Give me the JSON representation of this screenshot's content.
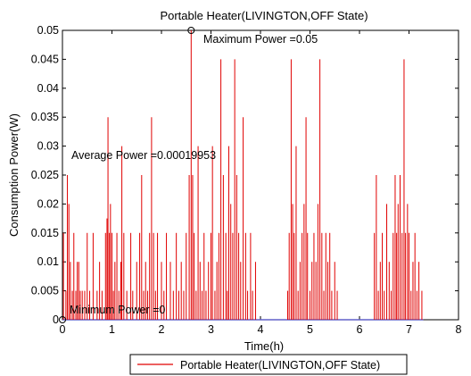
{
  "chart_data": {
    "type": "line",
    "title": "Portable Heater(LIVINGTON,OFF State)",
    "xlabel": "Time(h)",
    "ylabel": "Consumption Power(W)",
    "xlim": [
      0,
      8
    ],
    "ylim": [
      0,
      0.05
    ],
    "x_ticks": [
      "0",
      "1",
      "2",
      "3",
      "4",
      "5",
      "6",
      "7",
      "8"
    ],
    "y_ticks": [
      "0",
      "0.005",
      "0.01",
      "0.015",
      "0.02",
      "0.025",
      "0.03",
      "0.035",
      "0.04",
      "0.045",
      "0.05"
    ],
    "grid": false,
    "legend_position": "bottom-center",
    "series": [
      {
        "name": "Portable Heater(LIVINGTON,OFF State)",
        "color": "#e00000",
        "spikes": [
          [
            0.02,
            0.015
          ],
          [
            0.07,
            0.005
          ],
          [
            0.1,
            0.025
          ],
          [
            0.13,
            0.02
          ],
          [
            0.16,
            0.01
          ],
          [
            0.2,
            0.005
          ],
          [
            0.23,
            0.015
          ],
          [
            0.27,
            0.005
          ],
          [
            0.3,
            0.01
          ],
          [
            0.33,
            0.01
          ],
          [
            0.36,
            0.005
          ],
          [
            0.4,
            0.005
          ],
          [
            0.45,
            0.005
          ],
          [
            0.5,
            0.015
          ],
          [
            0.55,
            0.005
          ],
          [
            0.62,
            0.015
          ],
          [
            0.7,
            0.005
          ],
          [
            0.75,
            0.01
          ],
          [
            0.8,
            0.005
          ],
          [
            0.87,
            0.015
          ],
          [
            0.9,
            0.0175
          ],
          [
            0.92,
            0.035
          ],
          [
            0.95,
            0.015
          ],
          [
            0.97,
            0.02
          ],
          [
            1.0,
            0.015
          ],
          [
            1.03,
            0.005
          ],
          [
            1.06,
            0.01
          ],
          [
            1.1,
            0.015
          ],
          [
            1.14,
            0.005
          ],
          [
            1.18,
            0.01
          ],
          [
            1.2,
            0.03
          ],
          [
            1.24,
            0.015
          ],
          [
            1.3,
            0.005
          ],
          [
            1.38,
            0.015
          ],
          [
            1.42,
            0.005
          ],
          [
            1.5,
            0.01
          ],
          [
            1.56,
            0.015
          ],
          [
            1.6,
            0.025
          ],
          [
            1.64,
            0.005
          ],
          [
            1.68,
            0.01
          ],
          [
            1.72,
            0.005
          ],
          [
            1.76,
            0.015
          ],
          [
            1.8,
            0.035
          ],
          [
            1.84,
            0.015
          ],
          [
            1.88,
            0.005
          ],
          [
            1.92,
            0.015
          ],
          [
            2.0,
            0.01
          ],
          [
            2.05,
            0.005
          ],
          [
            2.1,
            0.015
          ],
          [
            2.18,
            0.01
          ],
          [
            2.24,
            0.005
          ],
          [
            2.3,
            0.015
          ],
          [
            2.35,
            0.005
          ],
          [
            2.4,
            0.01
          ],
          [
            2.45,
            0.005
          ],
          [
            2.5,
            0.015
          ],
          [
            2.56,
            0.025
          ],
          [
            2.6,
            0.05
          ],
          [
            2.63,
            0.025
          ],
          [
            2.66,
            0.015
          ],
          [
            2.7,
            0.005
          ],
          [
            2.74,
            0.03
          ],
          [
            2.78,
            0.01
          ],
          [
            2.82,
            0.005
          ],
          [
            2.86,
            0.015
          ],
          [
            2.9,
            0.005
          ],
          [
            2.95,
            0.01
          ],
          [
            3.0,
            0.015
          ],
          [
            3.03,
            0.03
          ],
          [
            3.08,
            0.005
          ],
          [
            3.12,
            0.01
          ],
          [
            3.16,
            0.015
          ],
          [
            3.2,
            0.045
          ],
          [
            3.25,
            0.025
          ],
          [
            3.3,
            0.015
          ],
          [
            3.33,
            0.005
          ],
          [
            3.36,
            0.03
          ],
          [
            3.4,
            0.02
          ],
          [
            3.44,
            0.015
          ],
          [
            3.48,
            0.045
          ],
          [
            3.52,
            0.025
          ],
          [
            3.56,
            0.015
          ],
          [
            3.6,
            0.01
          ],
          [
            3.65,
            0.035
          ],
          [
            3.7,
            0.015
          ],
          [
            3.74,
            0.005
          ],
          [
            3.8,
            0.015
          ],
          [
            3.84,
            0.005
          ],
          [
            3.9,
            0.01
          ],
          [
            4.55,
            0.005
          ],
          [
            4.58,
            0.015
          ],
          [
            4.62,
            0.045
          ],
          [
            4.65,
            0.02
          ],
          [
            4.68,
            0.015
          ],
          [
            4.72,
            0.03
          ],
          [
            4.76,
            0.005
          ],
          [
            4.8,
            0.01
          ],
          [
            4.84,
            0.015
          ],
          [
            4.88,
            0.02
          ],
          [
            4.92,
            0.035
          ],
          [
            4.95,
            0.015
          ],
          [
            5.0,
            0.005
          ],
          [
            5.04,
            0.01
          ],
          [
            5.08,
            0.015
          ],
          [
            5.12,
            0.01
          ],
          [
            5.16,
            0.02
          ],
          [
            5.2,
            0.045
          ],
          [
            5.24,
            0.015
          ],
          [
            5.28,
            0.005
          ],
          [
            5.32,
            0.015
          ],
          [
            5.36,
            0.01
          ],
          [
            5.4,
            0.015
          ],
          [
            5.44,
            0.005
          ],
          [
            5.5,
            0.01
          ],
          [
            5.55,
            0.005
          ],
          [
            6.3,
            0.015
          ],
          [
            6.34,
            0.025
          ],
          [
            6.38,
            0.005
          ],
          [
            6.42,
            0.01
          ],
          [
            6.46,
            0.015
          ],
          [
            6.5,
            0.005
          ],
          [
            6.55,
            0.02
          ],
          [
            6.6,
            0.01
          ],
          [
            6.64,
            0.005
          ],
          [
            6.68,
            0.015
          ],
          [
            6.72,
            0.025
          ],
          [
            6.75,
            0.015
          ],
          [
            6.78,
            0.02
          ],
          [
            6.82,
            0.025
          ],
          [
            6.86,
            0.015
          ],
          [
            6.9,
            0.045
          ],
          [
            6.93,
            0.015
          ],
          [
            6.97,
            0.02
          ],
          [
            7.0,
            0.015
          ],
          [
            7.04,
            0.005
          ],
          [
            7.08,
            0.01
          ],
          [
            7.12,
            0.015
          ],
          [
            7.16,
            0.005
          ],
          [
            7.2,
            0.01
          ],
          [
            7.26,
            0.005
          ]
        ]
      }
    ],
    "markers": [
      {
        "x": 2.6,
        "y": 0.05,
        "color": "#000000"
      },
      {
        "x": 0,
        "y": 0,
        "color": "#000000"
      }
    ],
    "annotations": {
      "max": "Maximum Power =0.05",
      "avg": "Average Power =0.00019953",
      "min": "Minimum Power =0"
    }
  }
}
